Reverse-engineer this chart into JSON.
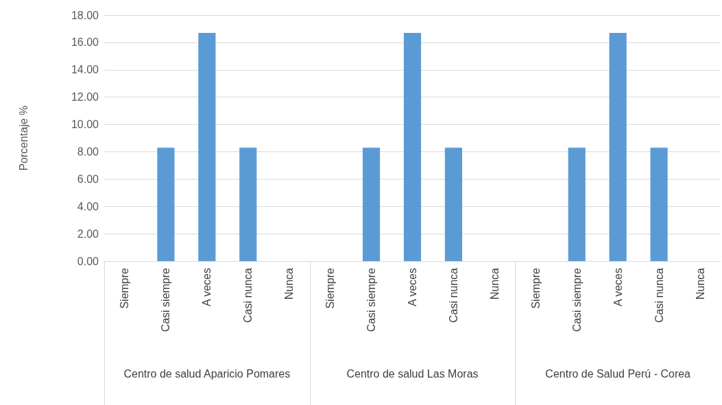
{
  "chart_data": {
    "type": "bar",
    "ylabel": "Porcentaje %",
    "categories": [
      "Siempre",
      "Casi siempre",
      "A veces",
      "Casi nunca",
      "Nunca",
      "Siempre",
      "Casi siempre",
      "A veces",
      "Casi nunca",
      "Nunca",
      "Siempre",
      "Casi siempre",
      "A veces",
      "Casi nunca",
      "Nunca"
    ],
    "values": [
      0,
      8.3,
      16.7,
      8.3,
      0,
      0,
      8.3,
      16.7,
      8.3,
      0,
      0,
      8.3,
      16.7,
      8.3,
      0
    ],
    "color": "#5b9bd5",
    "ylim": [
      0,
      18
    ],
    "yticks": [
      {
        "value": 0,
        "label": "0.00"
      },
      {
        "value": 2,
        "label": "2.00"
      },
      {
        "value": 4,
        "label": "4.00"
      },
      {
        "value": 6,
        "label": "6.00"
      },
      {
        "value": 8,
        "label": "8.00"
      },
      {
        "value": 10,
        "label": "10.00"
      },
      {
        "value": 12,
        "label": "12.00"
      },
      {
        "value": 14,
        "label": "14.00"
      },
      {
        "value": 16,
        "label": "16.00"
      },
      {
        "value": 18,
        "label": "18.00"
      }
    ],
    "annotations": [
      "Centro de salud Aparicio Pomares",
      "Centro de salud Las Moras",
      "Centro de Salud Perú - Corea"
    ],
    "grid": true
  }
}
